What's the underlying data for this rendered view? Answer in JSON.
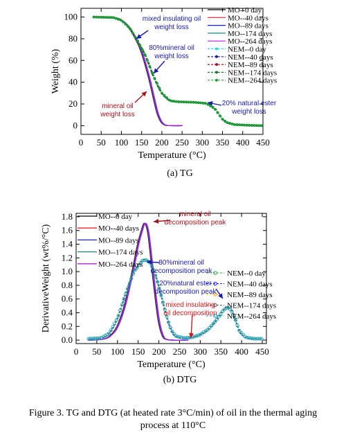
{
  "caption": {
    "line1": "Figure 3.    TG and DTG (at heated rate 3°C/min) of oil in the thermal aging",
    "line2": "process at 110°C"
  },
  "chart_data": [
    {
      "type": "line",
      "subcaption": "(a)    TG",
      "xlabel": "Temperature (°C)",
      "ylabel": "Weight (%)",
      "xlim": [
        0,
        450
      ],
      "ylim": [
        -8,
        108
      ],
      "xticks": [
        0,
        50,
        100,
        150,
        200,
        250,
        300,
        350,
        400,
        450
      ],
      "yticks": [
        0,
        20,
        40,
        60,
        80,
        100
      ],
      "grid": false,
      "legend_position": "top-right",
      "series": [
        {
          "name": "MO--0  day",
          "color": "#000000",
          "group": "MO"
        },
        {
          "name": "MO--40 days",
          "color": "#e8262a",
          "group": "MO"
        },
        {
          "name": "MO--89 days",
          "color": "#1a1aff",
          "group": "MO"
        },
        {
          "name": "MO--174 days",
          "color": "#1b8a80",
          "group": "MO"
        },
        {
          "name": "MO--264 days",
          "color": "#b21fd6",
          "group": "MO"
        },
        {
          "name": "NEM--0  day",
          "color": "#2fd6d6",
          "group": "NEM"
        },
        {
          "name": "NEM--40 days",
          "color": "#1a1a9c",
          "group": "NEM"
        },
        {
          "name": "NEM--89 days",
          "color": "#a0102a",
          "group": "NEM"
        },
        {
          "name": "NEM--174 days",
          "color": "#147a2a",
          "group": "NEM"
        },
        {
          "name": "NEM--264 days",
          "color": "#1fa33a",
          "group": "NEM"
        }
      ],
      "curves": {
        "MO": {
          "x": [
            30,
            80,
            100,
            120,
            140,
            150,
            160,
            170,
            180,
            190,
            200,
            210,
            220,
            250
          ],
          "y": [
            100,
            99.5,
            97,
            90,
            77,
            68,
            56,
            42,
            26,
            11,
            3,
            0.5,
            0,
            0
          ]
        },
        "NEM": {
          "x": [
            30,
            80,
            100,
            120,
            140,
            160,
            180,
            200,
            220,
            240,
            280,
            310,
            330,
            340,
            350,
            360,
            380,
            420,
            450
          ],
          "y": [
            100,
            99.5,
            97,
            90,
            78,
            64,
            45,
            30,
            23,
            22,
            21.5,
            20.5,
            16,
            11,
            6,
            3,
            1,
            0.3,
            0
          ]
        }
      },
      "annotations": [
        {
          "id": "mixed",
          "lines": [
            "mixed insulating oil",
            "weight loss"
          ],
          "color": "#1a1aa0"
        },
        {
          "id": "mineral80",
          "lines": [
            "80%mineral oil",
            "weight loss"
          ],
          "color": "#1a1aa0"
        },
        {
          "id": "mineral",
          "lines": [
            "mineral oil",
            "weight loss"
          ],
          "color": "#a0141e"
        },
        {
          "id": "ester20",
          "lines": [
            "20% natural ester",
            "weight loss"
          ],
          "color": "#1a1aa0"
        }
      ]
    },
    {
      "type": "line",
      "subcaption": "(b)    DTG",
      "xlabel": "Temperature (°C)",
      "ylabel": "DerivativeWeight (wt%/°C)",
      "xlim": [
        0,
        460
      ],
      "ylim": [
        -0.05,
        1.85
      ],
      "xticks": [
        0,
        50,
        100,
        150,
        200,
        250,
        300,
        350,
        400,
        450
      ],
      "yticks": [
        0.0,
        0.2,
        0.4,
        0.6,
        0.8,
        1.0,
        1.2,
        1.4,
        1.6,
        1.8
      ],
      "grid": false,
      "legend_position": "top-left / right",
      "series": [
        {
          "name": "MO--0   day",
          "color": "#000000",
          "group": "MO"
        },
        {
          "name": "MO--40  days",
          "color": "#e8262a",
          "group": "MO"
        },
        {
          "name": "MO--89  days",
          "color": "#1a1aff",
          "group": "MO"
        },
        {
          "name": "MO--174 days",
          "color": "#1b8a80",
          "group": "MO"
        },
        {
          "name": "MO--264 days",
          "color": "#b21fd6",
          "group": "MO"
        },
        {
          "name": "NEM--0    day",
          "color": "#2fa84a",
          "group": "NEM"
        },
        {
          "name": "NEM--40  days",
          "color": "#1a1aff",
          "group": "NEM"
        },
        {
          "name": "NEM--89  days",
          "color": "#f0a020",
          "group": "NEM"
        },
        {
          "name": "NEM--174 days",
          "color": "#555555",
          "group": "NEM"
        },
        {
          "name": "NEM--264 days",
          "color": "#1b9ab0",
          "group": "NEM"
        }
      ],
      "curves": {
        "MO": {
          "x": [
            30,
            60,
            80,
            100,
            120,
            140,
            150,
            160,
            165,
            170,
            175,
            180,
            190,
            200,
            210,
            220,
            240,
            270
          ],
          "y": [
            0,
            0.01,
            0.05,
            0.2,
            0.55,
            1.1,
            1.4,
            1.62,
            1.7,
            1.68,
            1.55,
            1.3,
            0.75,
            0.28,
            0.06,
            0.01,
            0,
            0
          ]
        },
        "NEM": {
          "x": [
            30,
            60,
            80,
            100,
            120,
            140,
            160,
            170,
            180,
            190,
            200,
            210,
            220,
            230,
            240,
            260,
            280,
            300,
            320,
            340,
            355,
            365,
            375,
            385,
            395,
            410,
            430,
            450
          ],
          "y": [
            0.02,
            0.03,
            0.1,
            0.32,
            0.68,
            1.0,
            1.16,
            1.17,
            1.12,
            0.98,
            0.78,
            0.55,
            0.32,
            0.15,
            0.06,
            0.03,
            0.04,
            0.08,
            0.16,
            0.3,
            0.43,
            0.48,
            0.44,
            0.3,
            0.13,
            0.04,
            0.02,
            0.02
          ]
        }
      },
      "annotations": [
        {
          "id": "mineral-peak",
          "lines": [
            "mineral oil",
            "decomposition peak"
          ],
          "color": "#a0141e"
        },
        {
          "id": "mineral80-peak",
          "lines": [
            "80%mineral oil",
            "decomposition peak"
          ],
          "color": "#1a1aa0"
        },
        {
          "id": "ester20-peak",
          "lines": [
            "20%natural ester",
            "decomposition peak"
          ],
          "color": "#1a1aa0"
        },
        {
          "id": "mixed-dec",
          "lines": [
            "mixed insulating",
            "oil decomposition"
          ],
          "color": "#d01818"
        }
      ]
    }
  ]
}
